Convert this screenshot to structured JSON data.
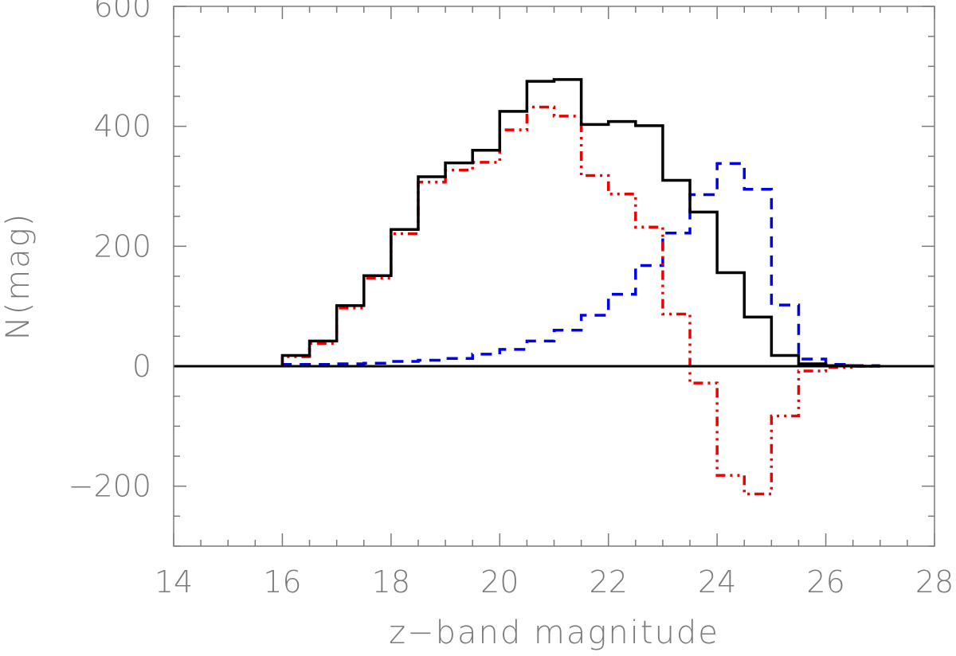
{
  "chart_data": {
    "type": "step",
    "xlabel": "z−band magnitude",
    "ylabel": "N(mag)",
    "xlim": [
      14,
      28
    ],
    "ylim": [
      -300,
      600
    ],
    "x_ticks": [
      "14",
      "16",
      "18",
      "20",
      "22",
      "24",
      "26",
      "28"
    ],
    "y_ticks": [
      "−200",
      "0",
      "200",
      "400",
      "600"
    ],
    "bin_edges": [
      16.0,
      16.5,
      17.0,
      17.5,
      18.0,
      18.5,
      19.0,
      19.5,
      20.0,
      20.5,
      21.0,
      21.5,
      22.0,
      22.5,
      23.0,
      23.5,
      24.0,
      24.5,
      25.0,
      25.5,
      26.0,
      26.5,
      27.0
    ],
    "zero_line": true,
    "series": [
      {
        "style": "solid",
        "color": "#000000",
        "values": [
          18,
          42,
          101,
          151,
          228,
          316,
          339,
          360,
          425,
          475,
          478,
          403,
          408,
          401,
          310,
          257,
          156,
          82,
          18,
          4,
          1,
          0
        ]
      },
      {
        "style": "dashed",
        "color": "#0000ee",
        "values": [
          3,
          3,
          4,
          5,
          8,
          10,
          13,
          20,
          28,
          42,
          60,
          85,
          120,
          168,
          222,
          286,
          338,
          295,
          102,
          12,
          3,
          1
        ]
      },
      {
        "style": "dash-dot-dot",
        "color": "#ee0000",
        "values": [
          16,
          38,
          97,
          147,
          221,
          307,
          327,
          340,
          394,
          432,
          417,
          318,
          287,
          232,
          87,
          -28,
          -182,
          -213,
          -83,
          -8,
          -2,
          0
        ]
      }
    ]
  }
}
